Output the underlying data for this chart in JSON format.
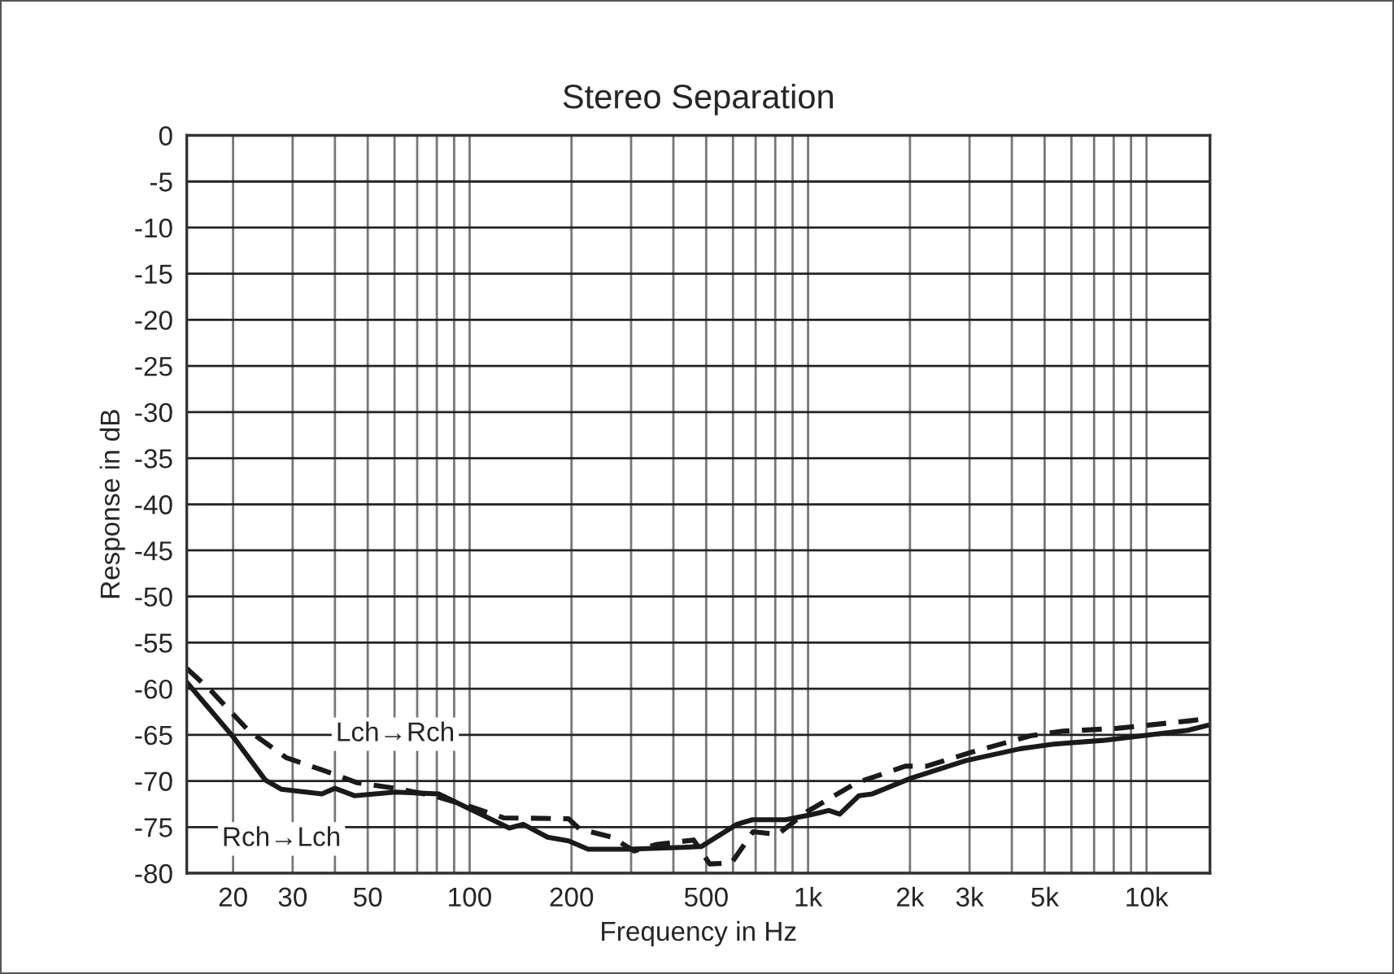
{
  "chart_data": {
    "type": "line",
    "title": "Stereo Separation",
    "xlabel": "Frequency in Hz",
    "ylabel": "Response in dB",
    "log": "x",
    "grid": true,
    "legend": false,
    "xlim": [
      14.6,
      15400
    ],
    "ylim": [
      -80,
      0
    ],
    "xticks": [
      20,
      30,
      {
        "value": 40,
        "label": null
      },
      50,
      {
        "value": 60,
        "label": null
      },
      {
        "value": 70,
        "label": null
      },
      {
        "value": 80,
        "label": null
      },
      {
        "value": 90,
        "label": null
      },
      100,
      200,
      {
        "value": 300,
        "label": null
      },
      {
        "value": 400,
        "label": null
      },
      500,
      {
        "value": 600,
        "label": null
      },
      {
        "value": 700,
        "label": null
      },
      {
        "value": 800,
        "label": null
      },
      {
        "value": 900,
        "label": null
      },
      {
        "value": 1000,
        "label": "1k"
      },
      {
        "value": 2000,
        "label": "2k"
      },
      {
        "value": 3000,
        "label": "3k"
      },
      {
        "value": 4000,
        "label": null
      },
      {
        "value": 5000,
        "label": "5k"
      },
      {
        "value": 6000,
        "label": null
      },
      {
        "value": 7000,
        "label": null
      },
      {
        "value": 8000,
        "label": null
      },
      {
        "value": 9000,
        "label": null
      },
      {
        "value": 10000,
        "label": "10k"
      }
    ],
    "yticks": [
      0,
      -5,
      -10,
      -15,
      -20,
      -25,
      -30,
      -35,
      -40,
      -45,
      -50,
      -55,
      -60,
      -65,
      -70,
      -75,
      -80
    ],
    "series": [
      {
        "name": "Rch→Lch",
        "color": "#1a1a1a",
        "line_style": "solid",
        "x": [
          14.6,
          20,
          24.9,
          27.8,
          36.6,
          40,
          45.7,
          60.3,
          81,
          101,
          131,
          144,
          170,
          196,
          224,
          295,
          426,
          484,
          616,
          685,
          859,
          1035,
          1152,
          1240,
          1413,
          1550,
          2015,
          2920,
          4240,
          5320,
          7440,
          13240,
          15400
        ],
        "values": [
          -59.3,
          -65.2,
          -69.9,
          -70.9,
          -71.4,
          -70.8,
          -71.6,
          -71.2,
          -71.4,
          -73.1,
          -75.1,
          -74.7,
          -76.1,
          -76.5,
          -77.4,
          -77.4,
          -77.2,
          -77.1,
          -74.7,
          -74.2,
          -74.2,
          -73.6,
          -73.2,
          -73.6,
          -71.6,
          -71.4,
          -69.7,
          -67.8,
          -66.5,
          -66.0,
          -65.6,
          -64.5,
          -63.9
        ]
      },
      {
        "name": "Lch→Rch",
        "color": "#1a1a1a",
        "line_style": "dashed",
        "x": [
          14.6,
          17.2,
          22.3,
          28.8,
          36,
          46.6,
          60.3,
          78.2,
          101,
          126,
          196,
          211,
          264,
          306,
          355,
          459,
          512,
          594,
          688,
          812,
          996,
          1390,
          1937,
          2240,
          3030,
          4540,
          5660,
          8160,
          13240,
          15400
        ],
        "values": [
          -57.8,
          -60.2,
          -64.6,
          -67.5,
          -68.7,
          -70.2,
          -70.8,
          -71.6,
          -72.8,
          -74.0,
          -74.1,
          -75.2,
          -76.1,
          -77.6,
          -76.9,
          -76.4,
          -79.0,
          -78.9,
          -75.5,
          -75.8,
          -73.3,
          -70.2,
          -68.4,
          -68.4,
          -66.9,
          -65.1,
          -64.6,
          -64.3,
          -63.5,
          -63.2
        ]
      }
    ]
  }
}
